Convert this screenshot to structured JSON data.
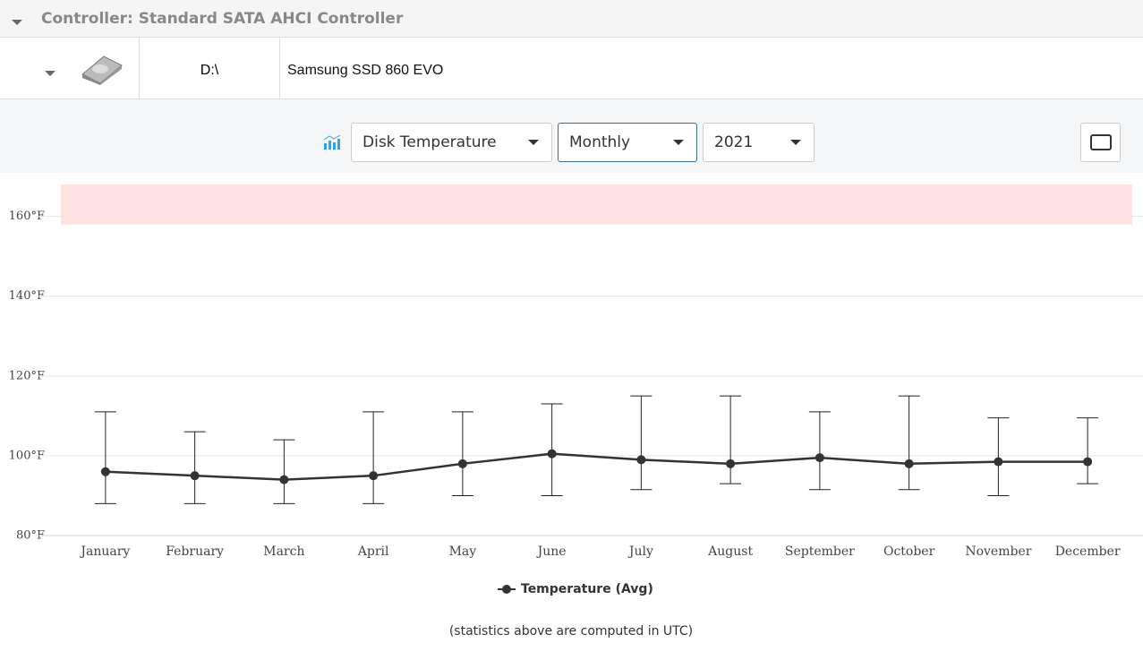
{
  "controller": {
    "label": "Controller: Standard SATA AHCI Controller"
  },
  "disk": {
    "drive": "D:\\",
    "model": "Samsung SSD 860 EVO"
  },
  "toolbar": {
    "metric": "Disk Temperature",
    "period": "Monthly",
    "year": "2021"
  },
  "chart_data": {
    "type": "line",
    "categories": [
      "January",
      "February",
      "March",
      "April",
      "May",
      "June",
      "July",
      "August",
      "September",
      "October",
      "November",
      "December"
    ],
    "series": [
      {
        "name": "Temperature (Avg)",
        "color": "#333333",
        "values": [
          96,
          95,
          94,
          95,
          98,
          100.5,
          99,
          98,
          99.5,
          98,
          98.5,
          98.5
        ],
        "lows": [
          88,
          88,
          88,
          88,
          90,
          90,
          91.5,
          93,
          91.5,
          91.5,
          90,
          93
        ],
        "highs": [
          111,
          106,
          104,
          111,
          111,
          113,
          115,
          115,
          111,
          115,
          109.5,
          109.5
        ]
      }
    ],
    "ylim": [
      80,
      168
    ],
    "yticks": [
      {
        "value": 80,
        "label": "80°F"
      },
      {
        "value": 100,
        "label": "100°F"
      },
      {
        "value": 120,
        "label": "120°F"
      },
      {
        "value": 140,
        "label": "140°F"
      },
      {
        "value": 160,
        "label": "160°F"
      }
    ],
    "warning_range": [
      158,
      168
    ],
    "warning_color": "#ffe3e0",
    "grid": true
  },
  "footnote": "(statistics above are computed in UTC)"
}
